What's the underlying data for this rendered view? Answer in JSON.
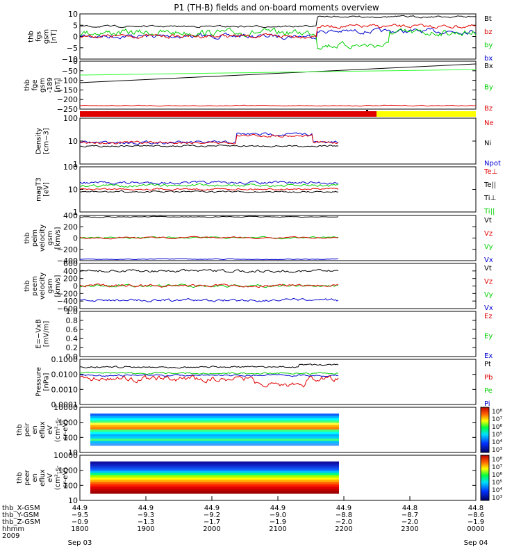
{
  "title": "P1 (TH-B) fields and on-board moments overview",
  "colors": {
    "black": "#000000",
    "red": "#e00000",
    "green": "#00d000",
    "blue": "#0000d0",
    "yellow": "#ffff00",
    "lime": "#33ff33"
  },
  "chart_data": [
    {
      "id": "p1",
      "type": "line",
      "ylabel": [
        "thb",
        "fgs",
        "gsm",
        "[nT]"
      ],
      "yticks": [
        "10",
        "5",
        "0",
        "−5",
        "−10"
      ],
      "legend": [
        {
          "text": "Bt",
          "color": "#000000"
        },
        {
          "text": "bz",
          "color": "#e00000"
        },
        {
          "text": "by",
          "color": "#00d000"
        },
        {
          "text": "bx",
          "color": "#0000d0"
        }
      ]
    },
    {
      "id": "p2",
      "type": "line",
      "ylabel": [
        "thb",
        "fge",
        "gsm",
        "-189",
        "[nT]"
      ],
      "yticks": [
        "0",
        "−50",
        "−100",
        "−150",
        "−200",
        "−250"
      ],
      "legend": [
        {
          "text": "Bx",
          "color": "#000000"
        },
        {
          "text": "By",
          "color": "#00d000"
        },
        {
          "text": "Bz",
          "color": "#e00000"
        }
      ]
    },
    {
      "id": "mode",
      "type": "bar",
      "segments": [
        {
          "from": "1800",
          "to": "2218",
          "color": "red"
        },
        {
          "from": "2218",
          "to": "0000",
          "color": "yellow"
        }
      ]
    },
    {
      "id": "p3",
      "type": "line",
      "ylabel": [
        "Density",
        "[cm−3]"
      ],
      "yticks": [
        "100",
        "10",
        "1"
      ],
      "yscale": "log",
      "legend": [
        {
          "text": "Ne",
          "color": "#e00000"
        },
        {
          "text": "Ni",
          "color": "#000000"
        },
        {
          "text": "Npot",
          "color": "#0000d0"
        }
      ]
    },
    {
      "id": "p4",
      "type": "line",
      "ylabel": [
        "magT3",
        "[eV]"
      ],
      "yticks": [
        "100",
        "10",
        "1"
      ],
      "yscale": "log",
      "legend": [
        {
          "text": "Te⊥",
          "color": "#e00000"
        },
        {
          "text": "Te||",
          "color": "#000000"
        },
        {
          "text": "Ti⊥",
          "color": "#000000"
        },
        {
          "text": "Ti||",
          "color": "#00d000"
        }
      ]
    },
    {
      "id": "p5",
      "type": "line",
      "ylabel": [
        "thb",
        "peim",
        "velocity",
        "gsm",
        "[km/s]"
      ],
      "yticks": [
        "400",
        "200",
        "0",
        "−200",
        "−400"
      ],
      "legend": [
        {
          "text": "Vt",
          "color": "#000000"
        },
        {
          "text": "Vz",
          "color": "#e00000"
        },
        {
          "text": "Vy",
          "color": "#00d000"
        },
        {
          "text": "Vx",
          "color": "#0000d0"
        }
      ]
    },
    {
      "id": "p6",
      "type": "line",
      "ylabel": [
        "thb",
        "peem",
        "velocity",
        "gsm",
        "[km/s]"
      ],
      "yticks": [
        "600",
        "400",
        "200",
        "0",
        "−200",
        "−400",
        "−600"
      ],
      "legend": [
        {
          "text": "Vt",
          "color": "#000000"
        },
        {
          "text": "Vz",
          "color": "#e00000"
        },
        {
          "text": "Vy",
          "color": "#00d000"
        },
        {
          "text": "Vx",
          "color": "#0000d0"
        }
      ]
    },
    {
      "id": "p7",
      "type": "line",
      "ylabel": [
        "E=−VxB",
        "[mV/m]"
      ],
      "yticks": [
        "1.0",
        "0.8",
        "0.6",
        "0.4",
        "0.2",
        "0.0"
      ],
      "legend": [
        {
          "text": "Ez",
          "color": "#e00000"
        },
        {
          "text": "Ey",
          "color": "#00d000"
        },
        {
          "text": "Ex",
          "color": "#0000d0"
        }
      ]
    },
    {
      "id": "p8",
      "type": "line",
      "ylabel": [
        "Pressure",
        "[nPa]"
      ],
      "yticks": [
        "0.1000",
        "0.0100",
        "0.0010",
        "0.0001"
      ],
      "yscale": "log",
      "legend": [
        {
          "text": "Pt",
          "color": "#000000"
        },
        {
          "text": "Pb",
          "color": "#e00000"
        },
        {
          "text": "Pe",
          "color": "#00d000"
        },
        {
          "text": "Pi",
          "color": "#0000d0"
        }
      ]
    },
    {
      "id": "p9",
      "type": "heatmap",
      "ylabel": [
        "thb",
        "peir",
        "en",
        "eflux",
        "eV",
        "(cm²-s-",
        "sr-eV)"
      ],
      "yticks": [
        "10000",
        "1000",
        "100",
        "10"
      ],
      "colorbar": [
        "10⁸",
        "10⁷",
        "10⁶",
        "10⁵",
        "10⁴",
        "10³"
      ]
    },
    {
      "id": "p10",
      "type": "heatmap",
      "ylabel": [
        "thb",
        "peer",
        "en",
        "eflux",
        "eV",
        "(cm²-s-",
        "sr-eV)"
      ],
      "yticks": [
        "10000",
        "1000",
        "100",
        "10"
      ],
      "colorbar": [
        "10⁸",
        "10⁷",
        "10⁶",
        "10⁵",
        "10⁴",
        "10³"
      ]
    }
  ],
  "xaxis": {
    "row_labels": [
      "thb_X-GSM",
      "thb_Y-GSM",
      "thb_Z-GSM",
      "hhmm",
      "2009"
    ],
    "columns": [
      [
        "44.9",
        "−9.5",
        "−0.9",
        "1800",
        "Sep 03"
      ],
      [
        "44.9",
        "−9.3",
        "−1.3",
        "1900",
        ""
      ],
      [
        "44.9",
        "−9.2",
        "−1.7",
        "2000",
        ""
      ],
      [
        "44.9",
        "−9.0",
        "−1.9",
        "2100",
        ""
      ],
      [
        "44.9",
        "−8.8",
        "−2.0",
        "2200",
        ""
      ],
      [
        "44.8",
        "−8.7",
        "−2.0",
        "2300",
        ""
      ],
      [
        "44.8",
        "−8.6",
        "−1.9",
        "0000",
        "Sep 04"
      ]
    ]
  }
}
